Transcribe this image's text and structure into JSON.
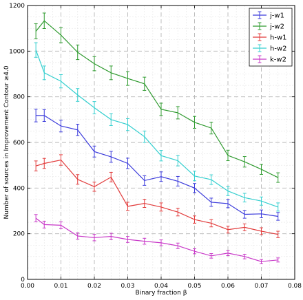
{
  "chart_data": {
    "type": "line",
    "xlabel": "Binary fraction β",
    "ylabel": "Number of sources in Improvement Contour  ≥4.0",
    "xlim": [
      0.0,
      0.08
    ],
    "ylim": [
      0,
      1200
    ],
    "x_ticks": [
      "0.00",
      "0.01",
      "0.02",
      "0.03",
      "0.04",
      "0.05",
      "0.06",
      "0.07",
      "0.08"
    ],
    "y_ticks": [
      "0",
      "200",
      "400",
      "600",
      "800",
      "1000",
      "1200"
    ],
    "grid": true,
    "legend_position": "top-right",
    "x": [
      0.0025,
      0.005,
      0.01,
      0.015,
      0.02,
      0.025,
      0.03,
      0.035,
      0.04,
      0.045,
      0.05,
      0.055,
      0.06,
      0.065,
      0.07,
      0.075
    ],
    "series": [
      {
        "name": "j-w1",
        "color": "#3b3bdb",
        "values": [
          718,
          718,
          672,
          655,
          560,
          537,
          508,
          433,
          450,
          430,
          400,
          338,
          332,
          285,
          287,
          276
        ],
        "errors": [
          28,
          26,
          26,
          25,
          24,
          24,
          23,
          21,
          21,
          21,
          20,
          18,
          18,
          17,
          17,
          17
        ]
      },
      {
        "name": "j-w2",
        "color": "#2e9a2e",
        "values": [
          1087,
          1133,
          1070,
          995,
          945,
          905,
          880,
          857,
          745,
          730,
          688,
          663,
          543,
          515,
          482,
          446
        ],
        "errors": [
          33,
          34,
          33,
          32,
          31,
          30,
          30,
          29,
          27,
          27,
          26,
          26,
          23,
          23,
          22,
          21
        ]
      },
      {
        "name": "h-w1",
        "color": "#e23c3c",
        "values": [
          497,
          508,
          523,
          438,
          406,
          448,
          320,
          333,
          317,
          295,
          262,
          246,
          218,
          228,
          211,
          197
        ],
        "errors": [
          22,
          22,
          23,
          21,
          20,
          21,
          18,
          18,
          18,
          17,
          16,
          16,
          15,
          15,
          15,
          14
        ]
      },
      {
        "name": "h-w2",
        "color": "#35cfcf",
        "values": [
          1005,
          905,
          868,
          808,
          752,
          700,
          678,
          625,
          542,
          520,
          453,
          437,
          387,
          358,
          343,
          317
        ],
        "errors": [
          32,
          30,
          29,
          28,
          27,
          26,
          26,
          25,
          23,
          23,
          21,
          21,
          20,
          19,
          18,
          18
        ]
      },
      {
        "name": "k-w2",
        "color": "#c838c8",
        "values": [
          268,
          240,
          237,
          190,
          183,
          188,
          175,
          167,
          160,
          147,
          123,
          103,
          115,
          100,
          78,
          85
        ],
        "errors": [
          16,
          15,
          15,
          14,
          14,
          14,
          13,
          13,
          13,
          12,
          11,
          10,
          11,
          10,
          9,
          9
        ]
      }
    ]
  }
}
